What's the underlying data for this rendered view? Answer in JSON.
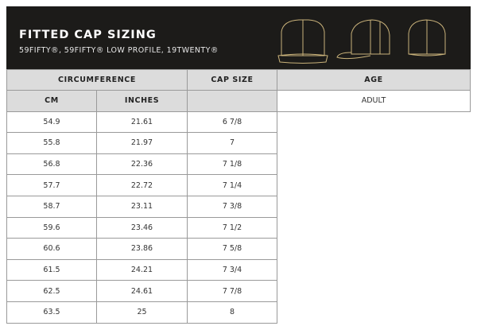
{
  "header": {
    "title": "FITTED CAP SIZING",
    "subtitle": "59FIFTY®, 59FIFTY® LOW PROFILE, 19TWENTY®",
    "accent": "#c9b27a"
  },
  "table": {
    "headers": {
      "circumference": "CIRCUMFERENCE",
      "cap_size": "CAP SIZE",
      "age": "AGE",
      "cm": "CM",
      "inches": "INCHES"
    },
    "age_value": "ADULT",
    "rows": [
      {
        "cm": "54.9",
        "inches": "21.61",
        "size": "6 7/8"
      },
      {
        "cm": "55.8",
        "inches": "21.97",
        "size": "7"
      },
      {
        "cm": "56.8",
        "inches": "22.36",
        "size": "7 1/8"
      },
      {
        "cm": "57.7",
        "inches": "22.72",
        "size": "7 1/4"
      },
      {
        "cm": "58.7",
        "inches": "23.11",
        "size": "7 3/8"
      },
      {
        "cm": "59.6",
        "inches": "23.46",
        "size": "7 1/2"
      },
      {
        "cm": "60.6",
        "inches": "23.86",
        "size": "7 5/8"
      },
      {
        "cm": "61.5",
        "inches": "24.21",
        "size": "7 3/4"
      },
      {
        "cm": "62.5",
        "inches": "24.61",
        "size": "7 7/8"
      },
      {
        "cm": "63.5",
        "inches": "25",
        "size": "8"
      }
    ]
  }
}
